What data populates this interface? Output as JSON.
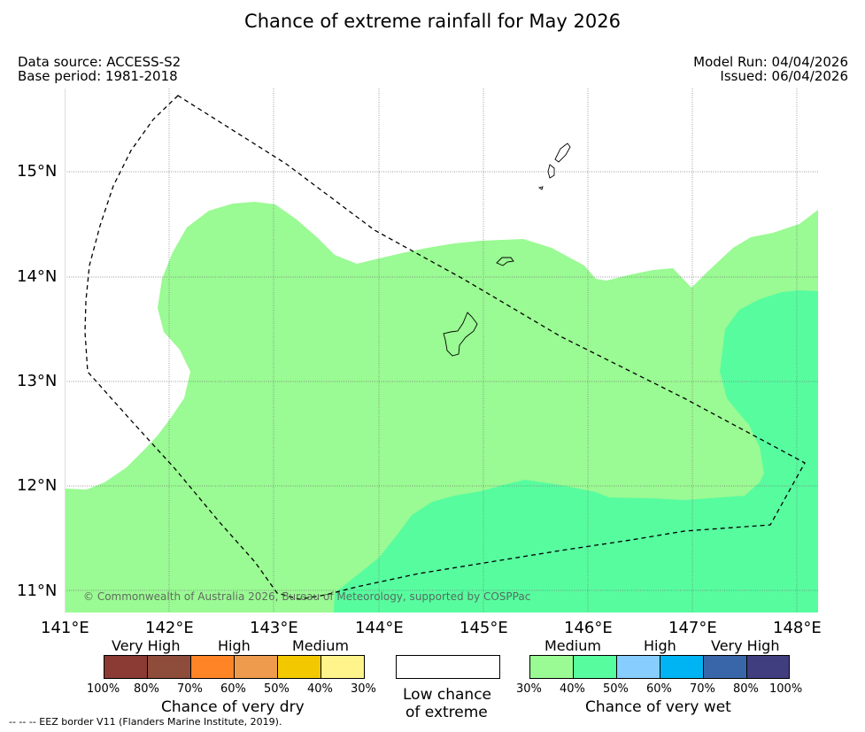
{
  "title": "Chance of extreme rainfall for May 2026",
  "meta": {
    "data_source": "Data source: ACCESS-S2",
    "base_period": "Base period: 1981-2018",
    "model_run": "Model Run: 04/04/2026",
    "issued": "Issued: 06/04/2026"
  },
  "axes": {
    "x_ticks": [
      "141°E",
      "142°E",
      "143°E",
      "144°E",
      "145°E",
      "146°E",
      "147°E",
      "148°E"
    ],
    "y_ticks": [
      "15°N",
      "14°N",
      "13°N",
      "12°N",
      "11°N"
    ]
  },
  "copyright": "© Commonwealth of Australia 2026, Bureau of Meteorology, supported by COSPPac",
  "legend": {
    "dry": {
      "categories": [
        "Very High",
        "High",
        "Medium"
      ],
      "colors": [
        "#8b3a34",
        "#8e4c3a",
        "#ff8426",
        "#ee9b4d",
        "#f2c800",
        "#fff48c"
      ],
      "percents": [
        "100%",
        "80%",
        "70%",
        "60%",
        "50%",
        "40%",
        "30%"
      ],
      "title": "Chance of very dry"
    },
    "low": {
      "line1": "Low chance",
      "line2": "of extreme",
      "color": "#ffffff"
    },
    "wet": {
      "categories": [
        "Medium",
        "High",
        "Very High"
      ],
      "colors": [
        "#9afa93",
        "#57fc9f",
        "#87cdfd",
        "#00b4f3",
        "#3966a8",
        "#413e7f"
      ],
      "percents": [
        "30%",
        "40%",
        "50%",
        "60%",
        "70%",
        "80%",
        "100%"
      ],
      "title": "Chance of very wet"
    }
  },
  "footnote": "--  --  -- EEZ border V11 (Flanders Marine Institute, 2019)."
}
